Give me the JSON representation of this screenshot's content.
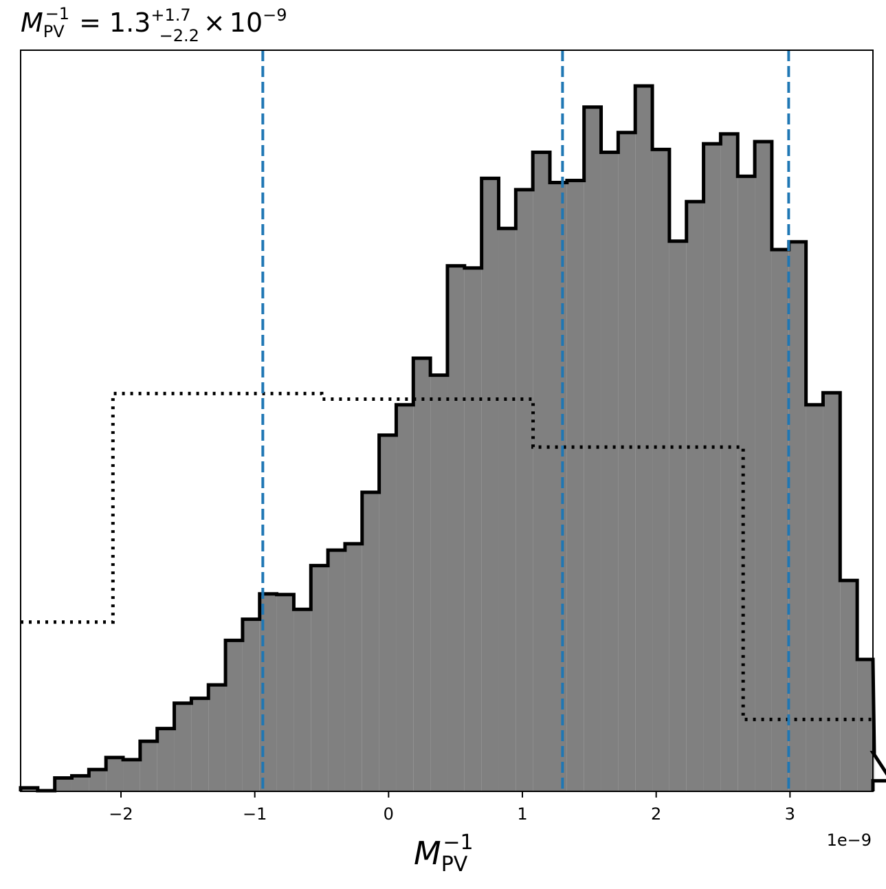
{
  "chart_data": {
    "type": "histogram",
    "title": {
      "symbol": "M",
      "symbol_sub": "PV",
      "symbol_sup": "−1",
      "equals": "=",
      "value": "1.3",
      "plus": "+1.7",
      "minus": "−2.2",
      "times": "×",
      "base": "10",
      "exponent": "−9"
    },
    "xlabel": {
      "symbol": "M",
      "sub": "PV",
      "sup": "−1"
    },
    "offset_label": "1e−9",
    "x_scale": 1e-09,
    "xlim": [
      -2.75,
      3.62
    ],
    "ylim": [
      0,
      1.0
    ],
    "x_ticks": [
      {
        "value": -2,
        "label": "−2"
      },
      {
        "value": -1,
        "label": "−1"
      },
      {
        "value": 0,
        "label": "0"
      },
      {
        "value": 1,
        "label": "1"
      },
      {
        "value": 2,
        "label": "2"
      },
      {
        "value": 3,
        "label": "3"
      }
    ],
    "posterior": {
      "fill_color": "#808080",
      "edge_color": "#000000",
      "bin_start": -2.75,
      "bin_width": 0.1276,
      "heights": [
        0.005,
        0.001,
        0.019,
        0.022,
        0.031,
        0.048,
        0.045,
        0.071,
        0.089,
        0.125,
        0.132,
        0.151,
        0.214,
        0.244,
        0.28,
        0.279,
        0.258,
        0.32,
        0.342,
        0.351,
        0.424,
        0.505,
        0.548,
        0.614,
        0.59,
        0.745,
        0.742,
        0.869,
        0.798,
        0.853,
        0.906,
        0.863,
        0.866,
        0.97,
        0.906,
        0.934,
        1.0,
        0.91,
        0.78,
        0.836,
        0.918,
        0.932,
        0.872,
        0.921,
        0.768,
        0.779,
        0.548,
        0.565,
        0.299,
        0.187,
        0.055,
        0.015
      ]
    },
    "prior": {
      "line_style": "dotted",
      "color": "#000000",
      "steps": [
        {
          "x0": -2.75,
          "x1": -2.06,
          "y": 0.24
        },
        {
          "x0": -2.06,
          "x1": -0.5,
          "y": 0.564
        },
        {
          "x0": -0.5,
          "x1": 1.08,
          "y": 0.556
        },
        {
          "x0": 1.08,
          "x1": 2.65,
          "y": 0.488
        },
        {
          "x0": 2.65,
          "x1": 3.62,
          "y": 0.102
        }
      ]
    },
    "credible_lines": {
      "color": "#1f77b4",
      "line_style": "dashed",
      "values": [
        -0.94,
        1.3,
        2.99
      ]
    }
  }
}
